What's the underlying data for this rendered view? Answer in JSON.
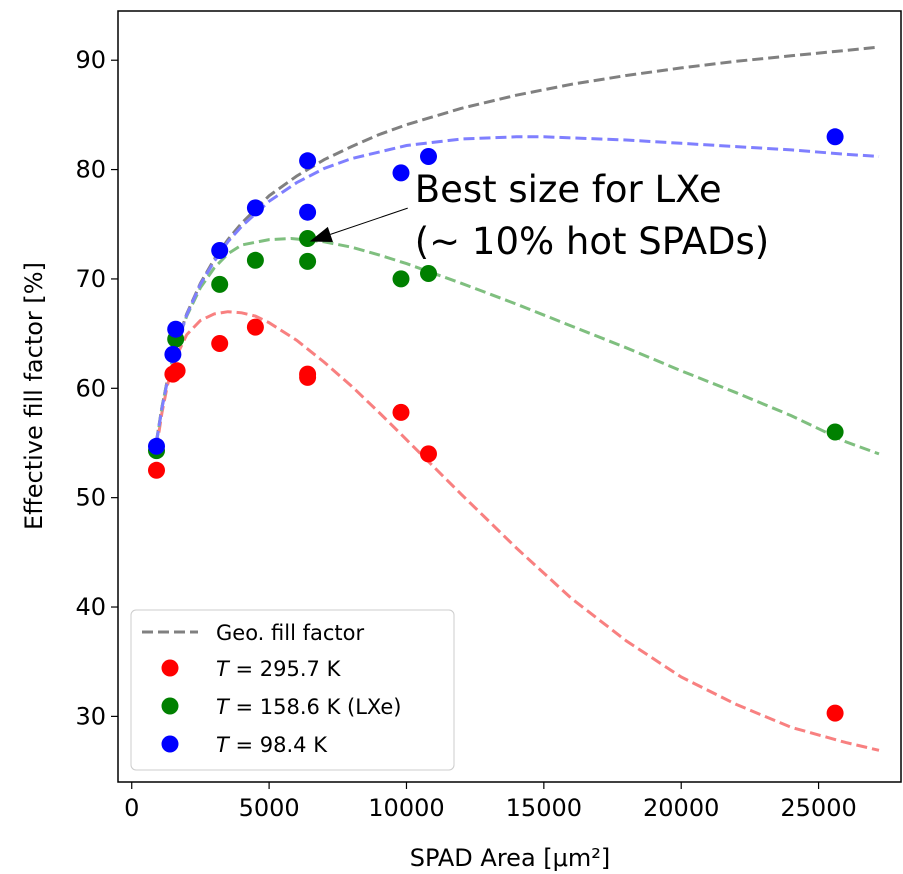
{
  "chart_data": {
    "type": "scatter",
    "title": "",
    "xlabel": "SPAD Area [μm²]",
    "ylabel": "Effective fill factor [%]",
    "xlim": [
      -500,
      28000
    ],
    "ylim": [
      24,
      94.5
    ],
    "xticks": [
      0,
      5000,
      10000,
      15000,
      20000,
      25000
    ],
    "xtick_labels": [
      "0",
      "5000",
      "10000",
      "15000",
      "20000",
      "25000"
    ],
    "yticks": [
      30,
      40,
      50,
      60,
      70,
      80,
      90
    ],
    "ytick_labels": [
      "30",
      "40",
      "50",
      "60",
      "70",
      "80",
      "90"
    ],
    "grid": false,
    "legend_position": "lower-left",
    "annotation": {
      "lines": [
        "Best size for LXe",
        "(~ 10% hot SPADs)"
      ],
      "points_to": [
        6400,
        73.7
      ],
      "text_at": [
        10300,
        73.0
      ]
    },
    "series": [
      {
        "name": "Geo. fill factor",
        "legend_text": "Geo. fill factor",
        "kind": "dashed-line",
        "color": "#808080",
        "x": [
          900,
          1100,
          1300,
          1600,
          2000,
          2500,
          3000,
          3500,
          4000,
          5000,
          6000,
          7000,
          8000,
          9000,
          10000,
          12000,
          14000,
          16000,
          18000,
          20000,
          22000,
          24000,
          26000,
          27200
        ],
        "y": [
          55.2,
          58.3,
          60.8,
          63.8,
          66.8,
          69.6,
          71.8,
          73.6,
          75.1,
          77.6,
          79.4,
          80.9,
          82.1,
          83.2,
          84.1,
          85.6,
          86.8,
          87.8,
          88.6,
          89.3,
          89.9,
          90.4,
          90.9,
          91.2
        ]
      },
      {
        "name": "T = 295.7 K",
        "legend_italic": "T",
        "legend_rest": " = 295.7 K",
        "color": "#ff0000",
        "fit_color": "#f88080",
        "points": [
          [
            900,
            52.5
          ],
          [
            1500,
            61.3
          ],
          [
            1650,
            61.6
          ],
          [
            3200,
            64.1
          ],
          [
            4500,
            65.6
          ],
          [
            6400,
            61.3
          ],
          [
            6400,
            61.0
          ],
          [
            9800,
            57.8
          ],
          [
            10800,
            54.0
          ],
          [
            25600,
            30.3
          ]
        ],
        "fit_x": [
          900,
          1100,
          1300,
          1600,
          2000,
          2500,
          3000,
          3500,
          4000,
          4500,
          5000,
          6000,
          7000,
          8000,
          9000,
          10000,
          12000,
          14000,
          16000,
          18000,
          20000,
          22000,
          24000,
          26000,
          27200
        ],
        "fit_y": [
          54.5,
          57.8,
          60.3,
          62.8,
          64.9,
          66.2,
          66.8,
          67.0,
          66.9,
          66.6,
          66.0,
          64.4,
          62.4,
          60.2,
          57.8,
          55.3,
          50.3,
          45.4,
          40.8,
          36.9,
          33.6,
          31.1,
          29.0,
          27.6,
          26.9
        ]
      },
      {
        "name": "T = 158.6 K (LXe)",
        "legend_italic": "T",
        "legend_rest": " = 158.6 K (LXe)",
        "color": "#008000",
        "fit_color": "#7fbf7f",
        "points": [
          [
            900,
            54.3
          ],
          [
            1600,
            64.5
          ],
          [
            3200,
            69.5
          ],
          [
            4500,
            71.7
          ],
          [
            6400,
            73.7
          ],
          [
            6400,
            71.6
          ],
          [
            9800,
            70.0
          ],
          [
            10800,
            70.5
          ],
          [
            25600,
            56.0
          ]
        ],
        "fit_x": [
          900,
          1100,
          1300,
          1600,
          2000,
          2500,
          3000,
          3500,
          4000,
          5000,
          5800,
          7000,
          8000,
          9000,
          10000,
          12000,
          14000,
          16000,
          18000,
          20000,
          22000,
          24000,
          26000,
          27200
        ],
        "fit_y": [
          55.0,
          58.3,
          60.8,
          63.8,
          66.6,
          69.2,
          71.0,
          72.3,
          73.1,
          73.6,
          73.7,
          73.4,
          72.9,
          72.2,
          71.4,
          69.6,
          67.7,
          65.7,
          63.7,
          61.6,
          59.6,
          57.5,
          55.1,
          54.0
        ]
      },
      {
        "name": "T = 98.4 K",
        "legend_italic": "T",
        "legend_rest": " = 98.4 K",
        "color": "#0000ff",
        "fit_color": "#7f7fff",
        "points": [
          [
            900,
            54.7
          ],
          [
            1500,
            63.1
          ],
          [
            1600,
            65.4
          ],
          [
            3200,
            72.6
          ],
          [
            4500,
            76.5
          ],
          [
            6400,
            80.8
          ],
          [
            6400,
            76.1
          ],
          [
            9800,
            79.7
          ],
          [
            10800,
            81.2
          ],
          [
            25600,
            83.0
          ]
        ],
        "fit_x": [
          900,
          1100,
          1300,
          1600,
          2000,
          2500,
          3000,
          3500,
          4000,
          5000,
          6000,
          7000,
          8000,
          10000,
          12000,
          14000,
          15000,
          16000,
          18000,
          20000,
          22000,
          24000,
          26000,
          27200
        ],
        "fit_y": [
          55.1,
          58.2,
          60.7,
          63.7,
          66.7,
          69.5,
          71.6,
          73.4,
          74.8,
          77.1,
          78.8,
          80.1,
          81.0,
          82.2,
          82.8,
          83.0,
          83.0,
          82.9,
          82.7,
          82.4,
          82.1,
          81.8,
          81.4,
          81.2
        ]
      }
    ]
  }
}
